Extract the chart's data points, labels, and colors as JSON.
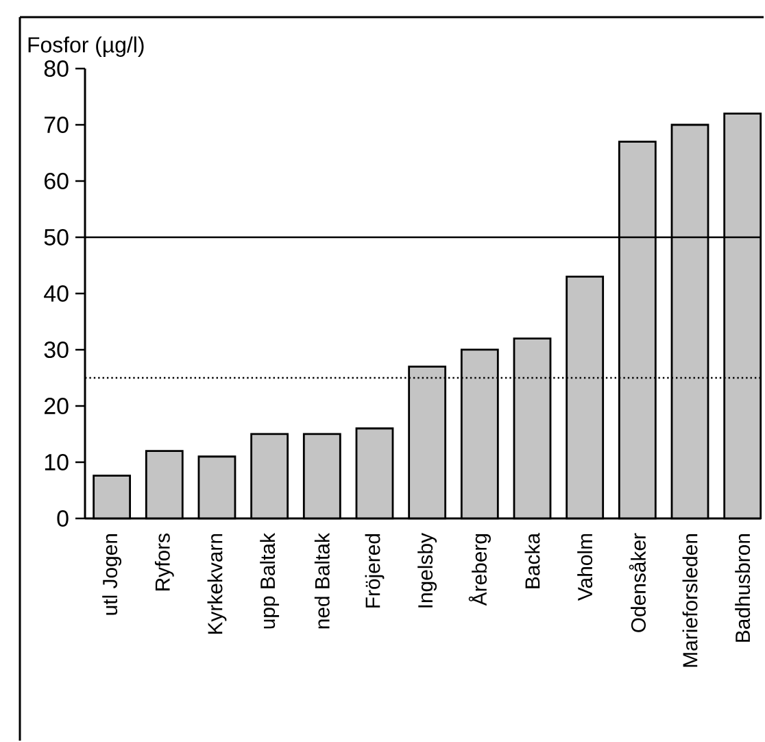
{
  "chart_data": {
    "type": "bar",
    "ylabel": "Fosfor (µg/l)",
    "categories": [
      "utl Jogen",
      "Ryfors",
      "Kyrkekvarn",
      "upp Baltak",
      "ned Baltak",
      "Fröjered",
      "Ingelsby",
      "Åreberg",
      "Backa",
      "Vaholm",
      "Odensåker",
      "Marieforsleden",
      "Badhusbron"
    ],
    "values": [
      7.6,
      12,
      11,
      15,
      15,
      16,
      27,
      30,
      32,
      43,
      67,
      70,
      72
    ],
    "color": "#c4c4c4",
    "ylim": [
      0,
      80
    ],
    "yticks": [
      0,
      10,
      20,
      30,
      40,
      50,
      60,
      70,
      80
    ],
    "ref_lines": [
      {
        "axis": "y",
        "value": 50,
        "line_style": "solid"
      },
      {
        "axis": "y",
        "value": 25,
        "line_style": "dotted"
      }
    ],
    "grid": false
  }
}
